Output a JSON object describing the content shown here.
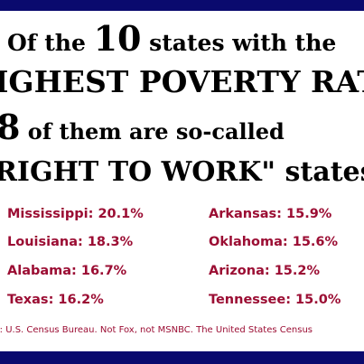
{
  "headline": {
    "line1_pre": "Of the ",
    "line1_num": "10",
    "line1_post": " states with the",
    "line2": "IGHEST POVERTY RAT",
    "line3_num": "8",
    "line3_post": " of them are so-called",
    "line4": "RIGHT TO WORK\" states"
  },
  "states": [
    {
      "label": "Mississippi: 20.1%"
    },
    {
      "label": "Arkansas: 15.9%"
    },
    {
      "label": "Louisiana: 18.3%"
    },
    {
      "label": "Oklahoma: 15.6%"
    },
    {
      "label": "Alabama: 16.7%"
    },
    {
      "label": "Arizona: 15.2%"
    },
    {
      "label": "Texas: 16.2%"
    },
    {
      "label": "Tennessee: 15.0%"
    }
  ],
  "source": "ce: U.S. Census Bureau. Not Fox, not MSNBC. The United States Census",
  "colors": {
    "band": "#0a0a6e",
    "state_text": "#9b0d33",
    "headline_text": "#000000",
    "background": "#ffffff"
  }
}
